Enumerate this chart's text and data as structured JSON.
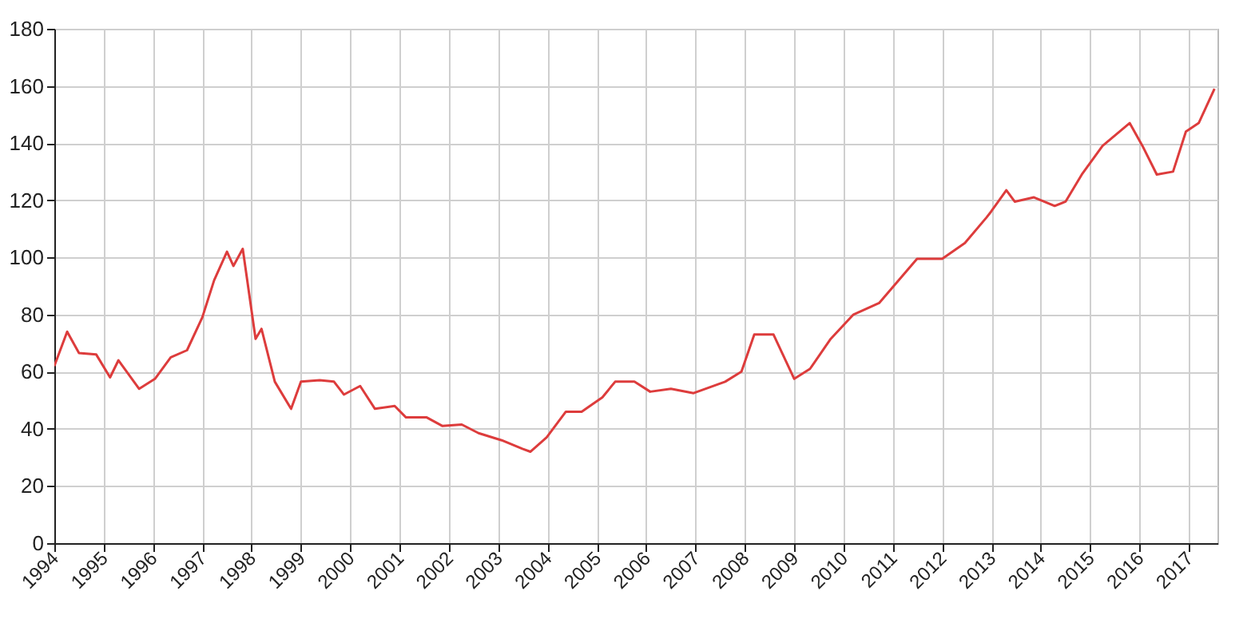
{
  "chart_data": {
    "type": "line",
    "x": [
      1994.0,
      1994.26,
      1994.5,
      1994.85,
      1995.13,
      1995.3,
      1995.72,
      1996.04,
      1996.36,
      1996.69,
      1997.0,
      1997.24,
      1997.5,
      1997.63,
      1997.82,
      1998.08,
      1998.2,
      1998.47,
      1998.8,
      1999.0,
      1999.38,
      1999.67,
      1999.87,
      2000.2,
      2000.5,
      2000.9,
      2001.13,
      2001.55,
      2001.87,
      2002.26,
      2002.6,
      2003.07,
      2003.49,
      2003.65,
      2003.98,
      2004.37,
      2004.69,
      2005.11,
      2005.37,
      2005.76,
      2006.08,
      2006.5,
      2006.96,
      2007.6,
      2007.93,
      2008.19,
      2008.58,
      2009.0,
      2009.32,
      2009.74,
      2010.2,
      2010.72,
      2011.49,
      2012.0,
      2012.46,
      2012.9,
      2012.99,
      2013.3,
      2013.47,
      2013.86,
      2014.28,
      2014.5,
      2014.83,
      2015.25,
      2015.8,
      2016.06,
      2016.35,
      2016.68,
      2016.94,
      2017.2,
      2017.52
    ],
    "series": [
      {
        "color": "#dd3c3c",
        "values": [
          62,
          74,
          66.5,
          66,
          58,
          64,
          54,
          57.5,
          65,
          67.5,
          79,
          92,
          102,
          97,
          103,
          71.5,
          75,
          56.5,
          47,
          56.5,
          57,
          56.5,
          52,
          55,
          47,
          48,
          44,
          44,
          41,
          41.5,
          38.5,
          36,
          33,
          32,
          37,
          46,
          46,
          51,
          56.5,
          56.5,
          53,
          54,
          52.5,
          56.5,
          60,
          73,
          73,
          57.5,
          61,
          71.5,
          80,
          84,
          99.5,
          99.5,
          105,
          114,
          116,
          123.5,
          119.5,
          121,
          118,
          119.5,
          129,
          139,
          147,
          139,
          129,
          130,
          144,
          147,
          159
        ]
      }
    ],
    "xlim": [
      1994,
      2017.58
    ],
    "xticks": [
      1994,
      1995,
      1996,
      1997,
      1998,
      1999,
      2000,
      2001,
      2002,
      2003,
      2004,
      2005,
      2006,
      2007,
      2008,
      2009,
      2010,
      2011,
      2012,
      2013,
      2014,
      2015,
      2016,
      2017
    ],
    "ylim": [
      0,
      180
    ],
    "yticks": [
      0,
      20,
      40,
      60,
      80,
      100,
      120,
      140,
      160,
      180
    ],
    "grid": true,
    "marker": "none",
    "line_style": "solid"
  }
}
